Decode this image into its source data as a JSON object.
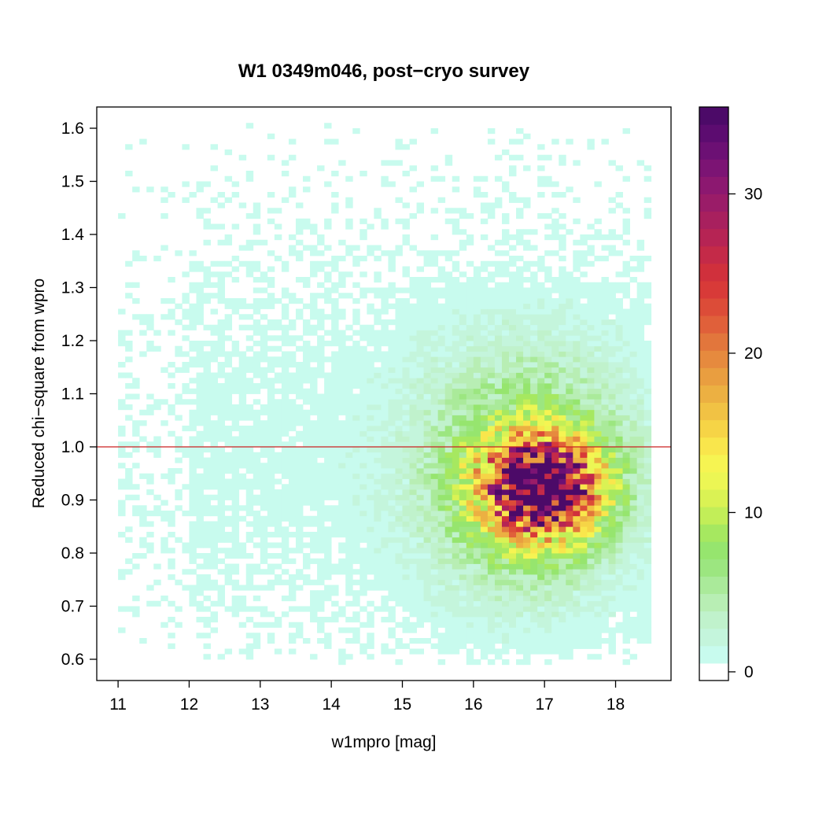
{
  "chart_data": {
    "type": "heatmap",
    "title": "W1 0349m046, post−cryo survey",
    "xlabel": "w1mpro [mag]",
    "ylabel": "Reduced chi−square from wpro",
    "xlim": [
      10.7,
      18.78
    ],
    "ylim": [
      0.56,
      1.64
    ],
    "x_ticks": [
      11,
      12,
      13,
      14,
      15,
      16,
      17,
      18
    ],
    "y_ticks": [
      0.6,
      0.7,
      0.8,
      0.9,
      1.0,
      1.1,
      1.2,
      1.3,
      1.4,
      1.5,
      1.6
    ],
    "y_tick_labels": [
      "0.6",
      "0.7",
      "0.8",
      "0.9",
      "1.0",
      "1.1",
      "1.2",
      "1.3",
      "1.4",
      "1.5",
      "1.6"
    ],
    "bin_width_x": 0.1,
    "bin_width_y": 0.01,
    "peak": {
      "x": 16.95,
      "y": 0.925,
      "count": 35
    },
    "reference_line": {
      "y": 1.0,
      "color": "#cc2222"
    },
    "grid": false,
    "colorbar": {
      "min": 0,
      "max": 36,
      "ticks": [
        0,
        10,
        20,
        30
      ],
      "position": "right",
      "colors": [
        "#ffffff",
        "#c8fbee",
        "#c4f5dc",
        "#c0f2cc",
        "#b8eeb4",
        "#aaea9a",
        "#9ce680",
        "#96e56e",
        "#a6e860",
        "#c2ee58",
        "#daf254",
        "#ecf654",
        "#f6f452",
        "#f9e64c",
        "#f6d446",
        "#f1c244",
        "#ecb042",
        "#e99e40",
        "#e68a3e",
        "#e2763c",
        "#e0603a",
        "#dc4c38",
        "#d83a38",
        "#d0303c",
        "#c42a48",
        "#b62454",
        "#a8205e",
        "#9a1c68",
        "#8c1870",
        "#7c1474",
        "#6c1074",
        "#5c0c70",
        "#4c0a68"
      ]
    }
  }
}
